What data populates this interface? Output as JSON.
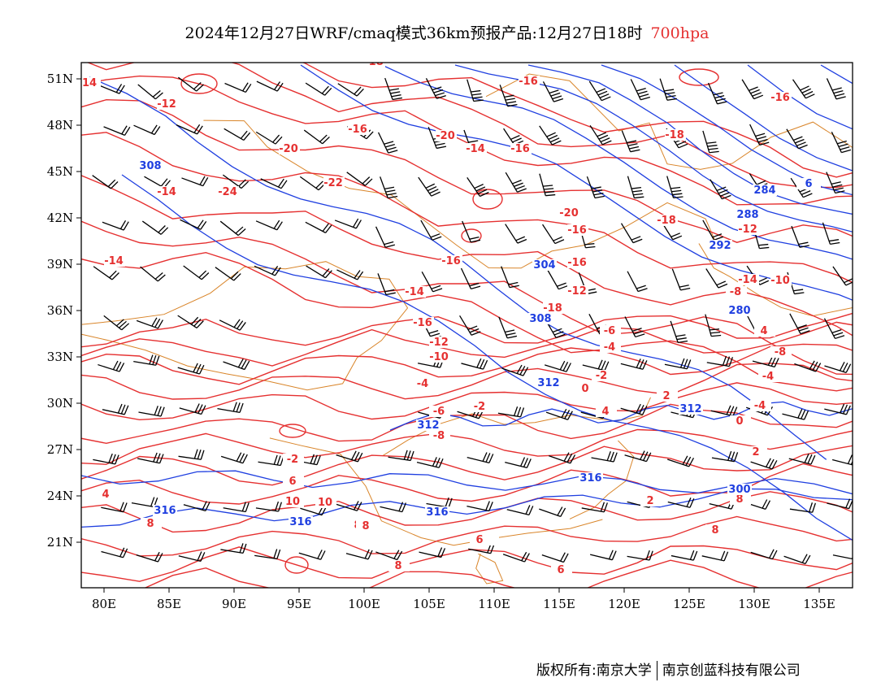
{
  "title": {
    "main": "2024年12月27日WRF/cmaq模式36km预报产品:12月27日18时",
    "level": "700hpa"
  },
  "footer": {
    "copyright": "版权所有:南京大学",
    "company": "南京创蓝科技有限公司"
  },
  "axes": {
    "lon_ticks": [
      "80E",
      "85E",
      "90E",
      "95E",
      "100E",
      "105E",
      "110E",
      "115E",
      "120E",
      "125E",
      "130E",
      "135E"
    ],
    "lat_ticks": [
      "21N",
      "24N",
      "27N",
      "30N",
      "33N",
      "36N",
      "39N",
      "42N",
      "45N",
      "48N",
      "51N"
    ]
  },
  "colors": {
    "temperature": "#e53030",
    "height": "#1f3fe0",
    "border": "#d9852a",
    "wind": "#000000"
  },
  "temperature_labels": [
    "14",
    "-12",
    "-16",
    "-18",
    "-20",
    "-14",
    "-16",
    "-18",
    "-16",
    "-20",
    "-22",
    "-24",
    "-20",
    "-16",
    "-18",
    "-12",
    "-14",
    "-16",
    "-16",
    "-14",
    "-12",
    "-18",
    "-16",
    "-14",
    "-10",
    "-8",
    "-12",
    "-10",
    "-8",
    "-6",
    "-4",
    "-4",
    "-2",
    "0",
    "-2",
    "-4",
    "-6",
    "-8",
    "4",
    "0",
    "2",
    "-2",
    "2",
    "-4",
    "4",
    "6",
    "10",
    "8",
    "6",
    "8",
    "8",
    "6",
    "8",
    "6",
    "8",
    "6",
    "8",
    "2",
    "4",
    "10",
    "-14",
    "-16"
  ],
  "height_labels": [
    "308",
    "284",
    "288",
    "292",
    "304",
    "308",
    "312",
    "312",
    "312",
    "316",
    "316",
    "316",
    "316",
    "300",
    "280",
    "6"
  ]
}
